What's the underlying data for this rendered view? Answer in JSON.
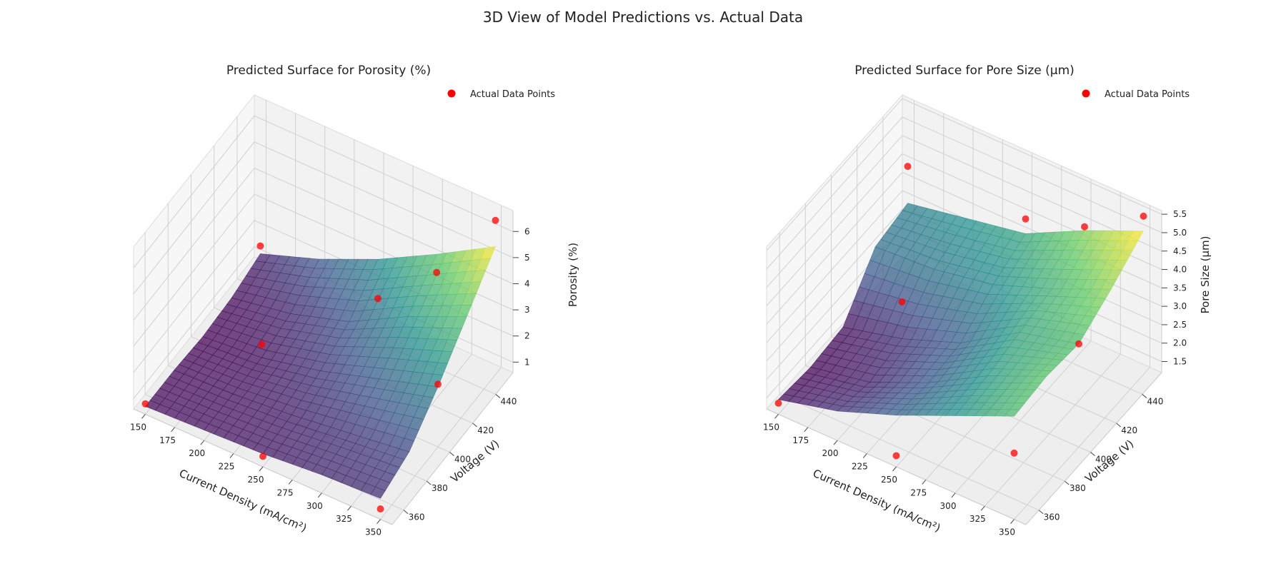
{
  "figure": {
    "suptitle": "3D View of Model Predictions vs. Actual Data"
  },
  "chart_data": [
    {
      "type": "surface3d",
      "title": "Predicted Surface for Porosity (%)",
      "xlabel": "Current Density (mA/cm²)",
      "ylabel": "Voltage (V)",
      "zlabel": "Porosity (%)",
      "xlim": [
        140,
        360
      ],
      "ylim": [
        350,
        455
      ],
      "zlim": [
        0.6,
        6.8
      ],
      "xticks": [
        150,
        175,
        200,
        225,
        250,
        275,
        300,
        325,
        350
      ],
      "yticks": [
        360,
        380,
        400,
        420,
        440
      ],
      "zticks": [
        1,
        2,
        3,
        4,
        5,
        6
      ],
      "colormap": "viridis",
      "legend": {
        "label": "Actual Data Points",
        "position": "top-right",
        "color": "#ff0000"
      },
      "grid_x": [
        150,
        200,
        250,
        300,
        350
      ],
      "grid_y": [
        350,
        375,
        400,
        425,
        450
      ],
      "surface_z": [
        [
          0.9,
          1.0,
          1.1,
          1.3,
          1.4
        ],
        [
          0.9,
          1.0,
          1.2,
          1.5,
          1.8
        ],
        [
          0.8,
          1.0,
          1.5,
          2.2,
          2.9
        ],
        [
          0.9,
          1.3,
          2.0,
          3.2,
          4.2
        ],
        [
          1.2,
          2.0,
          3.0,
          4.2,
          5.5
        ]
      ],
      "points": [
        {
          "x": 150,
          "y": 350,
          "z": 1.0
        },
        {
          "x": 150,
          "y": 450,
          "z": 1.5
        },
        {
          "x": 200,
          "y": 400,
          "z": 1.5
        },
        {
          "x": 250,
          "y": 350,
          "z": 1.0
        },
        {
          "x": 250,
          "y": 450,
          "z": 1.5
        },
        {
          "x": 300,
          "y": 450,
          "z": 3.5
        },
        {
          "x": 350,
          "y": 350,
          "z": 1.0
        },
        {
          "x": 350,
          "y": 400,
          "z": 3.0
        },
        {
          "x": 350,
          "y": 450,
          "z": 6.5
        }
      ]
    },
    {
      "type": "surface3d",
      "title": "Predicted Surface for Pore Size (μm)",
      "xlabel": "Current Density (mA/cm²)",
      "ylabel": "Voltage (V)",
      "zlabel": "Pore Size (μm)",
      "xlim": [
        140,
        360
      ],
      "ylim": [
        350,
        455
      ],
      "zlim": [
        1.2,
        5.6
      ],
      "xticks": [
        150,
        175,
        200,
        225,
        250,
        275,
        300,
        325,
        350
      ],
      "yticks": [
        360,
        380,
        400,
        420,
        440
      ],
      "zticks": [
        1.5,
        2.0,
        2.5,
        3.0,
        3.5,
        4.0,
        4.5,
        5.0,
        5.5
      ],
      "colormap": "viridis",
      "legend": {
        "label": "Actual Data Points",
        "position": "top-right",
        "color": "#ff0000"
      },
      "grid_x": [
        150,
        200,
        250,
        300,
        350
      ],
      "grid_y": [
        350,
        375,
        400,
        425,
        450
      ],
      "surface_z": [
        [
          1.6,
          2.0,
          2.6,
          3.3,
          4.0
        ],
        [
          1.5,
          1.8,
          2.5,
          3.4,
          4.1
        ],
        [
          1.6,
          2.0,
          2.6,
          3.6,
          4.0
        ],
        [
          2.8,
          2.9,
          3.2,
          3.8,
          4.5
        ],
        [
          3.0,
          3.3,
          3.6,
          4.4,
          5.1
        ]
      ],
      "points": [
        {
          "x": 150,
          "y": 350,
          "z": 1.5
        },
        {
          "x": 150,
          "y": 450,
          "z": 4.0
        },
        {
          "x": 200,
          "y": 400,
          "z": 3.0
        },
        {
          "x": 250,
          "y": 350,
          "z": 1.5
        },
        {
          "x": 250,
          "y": 450,
          "z": 4.0
        },
        {
          "x": 300,
          "y": 450,
          "z": 4.5
        },
        {
          "x": 350,
          "y": 350,
          "z": 3.0
        },
        {
          "x": 350,
          "y": 400,
          "z": 4.0
        },
        {
          "x": 350,
          "y": 450,
          "z": 5.5
        }
      ]
    }
  ]
}
